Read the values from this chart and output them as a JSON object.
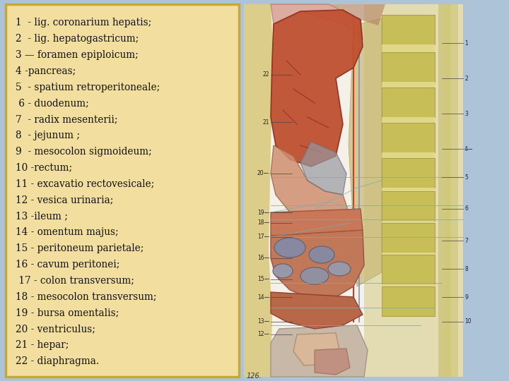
{
  "background_color": "#adc4d8",
  "panel_bg_color": "#f2dfa0",
  "panel_border_color": "#c8a830",
  "text_color": "#111111",
  "font_size": 9.8,
  "lines": [
    "1  - lig. coronarium hepatis;",
    "2  - lig. hepatogastricum;",
    "3 — foramen epiploicum;",
    "4 -pancreas;",
    "5  - spatium retroperitoneale;",
    " 6 - duodenum;",
    "7  - radix mesenterii;",
    "8  - jejunum ;",
    "9  - mesocolon sigmoideum;",
    "10 -rectum;",
    "11 - excavatio rectovesicale;",
    "12 - vesica urinaria;",
    "13 -ileum ;",
    "14 - omentum majus;",
    "15 - peritoneum parietale;",
    "16 - cavum peritonei;",
    " 17 - colon transversum;",
    "18 - mesocolon transversum;",
    "19 - bursa omentalis;",
    "20 - ventriculus;",
    "21 - hepar;",
    "22 - diaphragma."
  ],
  "illus_bg": "#f5f0e8",
  "liver_color": "#c05838",
  "stomach_color": "#c87858",
  "intestine_color": "#c87050",
  "colon_color": "#b86848",
  "pelvis_color": "#c8b8a0",
  "spine_color": "#d4c870",
  "vert_color": "#c8be50",
  "muscle_color": "#d4c878",
  "peritoneum_color": "#88c0b0",
  "label_color": "#222222"
}
